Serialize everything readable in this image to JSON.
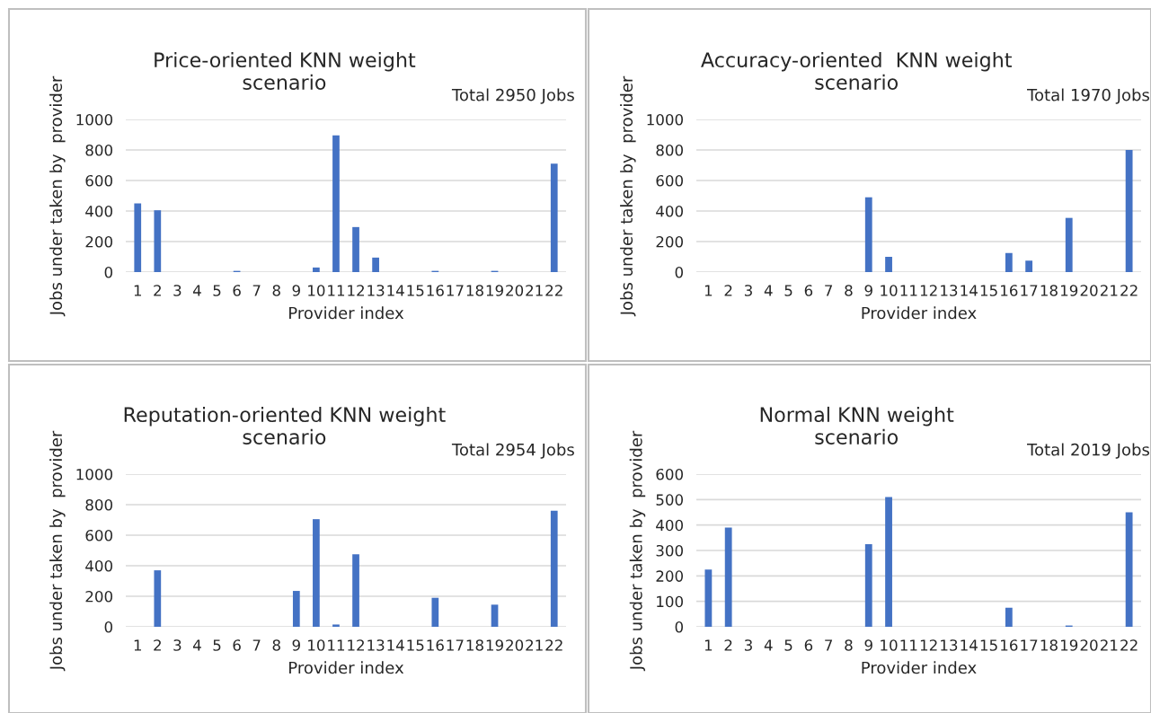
{
  "chart_data": [
    {
      "type": "bar",
      "title": "Price-oriented KNN weight\nscenario",
      "xlabel": "Provider index",
      "ylabel": "Jobs under taken by  provider",
      "annotations": [
        "Total 2950 Jobs"
      ],
      "categories": [
        "1",
        "2",
        "3",
        "4",
        "5",
        "6",
        "7",
        "8",
        "9",
        "10",
        "11",
        "12",
        "13",
        "14",
        "15",
        "16",
        "17",
        "18",
        "19",
        "20",
        "21",
        "22"
      ],
      "values": [
        450,
        405,
        0,
        0,
        0,
        8,
        0,
        0,
        0,
        30,
        895,
        295,
        95,
        0,
        0,
        8,
        0,
        0,
        8,
        0,
        0,
        710
      ],
      "color": "#4472c4",
      "ylim": [
        0,
        1000
      ],
      "yticks": [
        0,
        200,
        400,
        600,
        800,
        1000
      ],
      "grid": "y"
    },
    {
      "type": "bar",
      "title": "Accuracy-oriented  KNN weight\nscenario",
      "xlabel": "Provider index",
      "ylabel": "Jobs under taken by  provider",
      "annotations": [
        "Total 1970 Jobs"
      ],
      "categories": [
        "1",
        "2",
        "3",
        "4",
        "5",
        "6",
        "7",
        "8",
        "9",
        "10",
        "11",
        "12",
        "13",
        "14",
        "15",
        "16",
        "17",
        "18",
        "19",
        "20",
        "21",
        "22"
      ],
      "values": [
        0,
        0,
        0,
        0,
        0,
        0,
        0,
        0,
        490,
        100,
        0,
        0,
        0,
        0,
        0,
        125,
        75,
        0,
        355,
        0,
        0,
        800
      ],
      "color": "#4472c4",
      "ylim": [
        0,
        1000
      ],
      "yticks": [
        0,
        200,
        400,
        600,
        800,
        1000
      ],
      "grid": "y"
    },
    {
      "type": "bar",
      "title": "Reputation-oriented KNN weight\nscenario",
      "xlabel": "Provider index",
      "ylabel": "Jobs under taken by  provider",
      "annotations": [
        "Total 2954 Jobs"
      ],
      "categories": [
        "1",
        "2",
        "3",
        "4",
        "5",
        "6",
        "7",
        "8",
        "9",
        "10",
        "11",
        "12",
        "13",
        "14",
        "15",
        "16",
        "17",
        "18",
        "19",
        "20",
        "21",
        "22"
      ],
      "values": [
        0,
        370,
        0,
        0,
        0,
        0,
        0,
        0,
        235,
        705,
        15,
        475,
        0,
        0,
        0,
        190,
        0,
        0,
        145,
        0,
        0,
        760
      ],
      "color": "#4472c4",
      "ylim": [
        0,
        1000
      ],
      "yticks": [
        0,
        200,
        400,
        600,
        800,
        1000
      ],
      "grid": "y"
    },
    {
      "type": "bar",
      "title": "Normal KNN weight\nscenario",
      "xlabel": "Provider index",
      "ylabel": "Jobs under taken by  provider",
      "annotations": [
        "Total 2019 Jobs"
      ],
      "categories": [
        "1",
        "2",
        "3",
        "4",
        "5",
        "6",
        "7",
        "8",
        "9",
        "10",
        "11",
        "12",
        "13",
        "14",
        "15",
        "16",
        "17",
        "18",
        "19",
        "20",
        "21",
        "22"
      ],
      "values": [
        225,
        390,
        0,
        0,
        0,
        0,
        0,
        0,
        325,
        510,
        0,
        0,
        0,
        0,
        0,
        75,
        0,
        0,
        5,
        0,
        0,
        450
      ],
      "color": "#4472c4",
      "ylim": [
        0,
        600
      ],
      "yticks": [
        0,
        100,
        200,
        300,
        400,
        500,
        600
      ],
      "grid": "y"
    }
  ]
}
